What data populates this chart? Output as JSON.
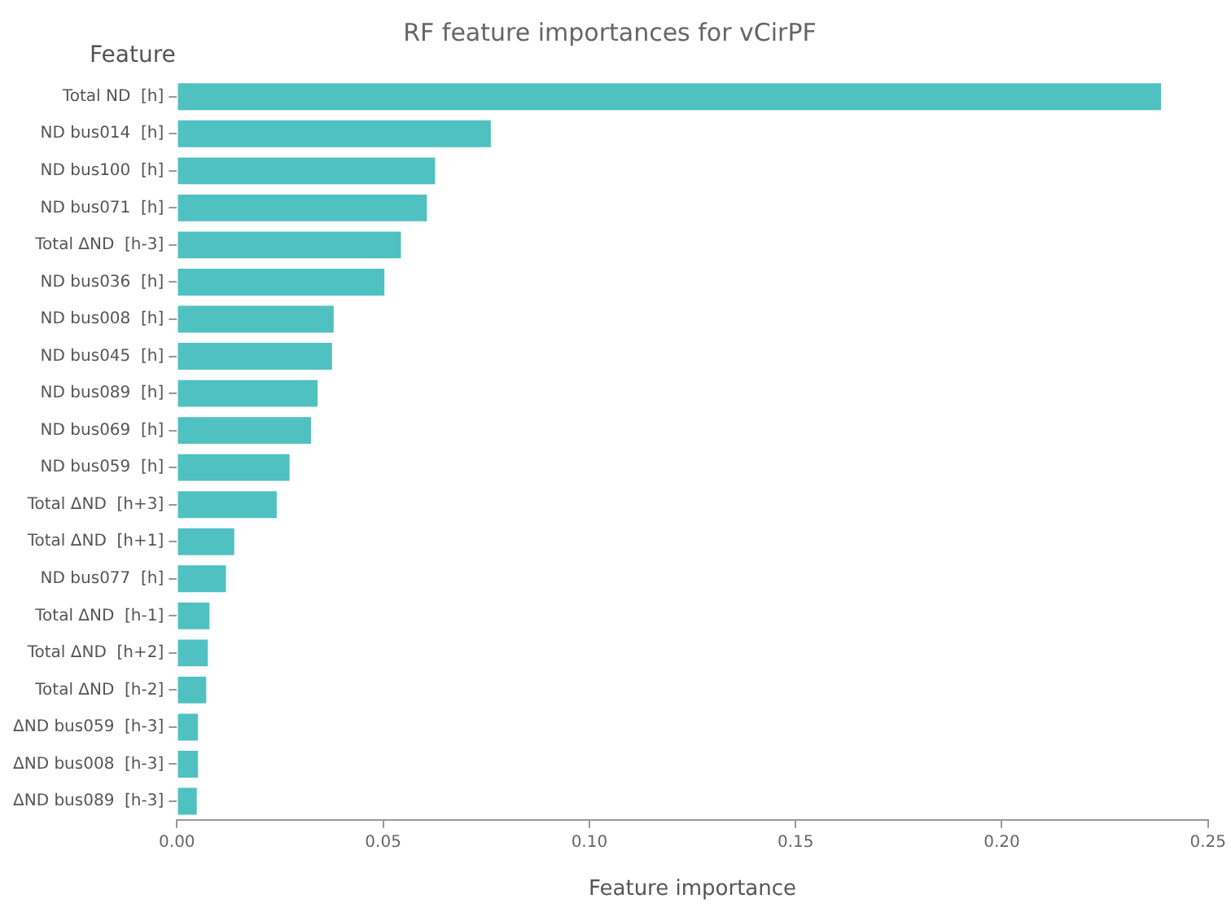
{
  "chart_data": {
    "type": "bar",
    "orientation": "horizontal",
    "title": "RF feature importances for vCirPF",
    "xlabel": "Feature importance",
    "ylabel": "Feature",
    "categories": [
      "Total ND  [h]",
      "ND bus014  [h]",
      "ND bus100  [h]",
      "ND bus071  [h]",
      "Total ΔND  [h-3]",
      "ND bus036  [h]",
      "ND bus008  [h]",
      "ND bus045  [h]",
      "ND bus089  [h]",
      "ND bus069  [h]",
      "ND bus059  [h]",
      "Total ΔND  [h+3]",
      "Total ΔND  [h+1]",
      "ND bus077  [h]",
      "Total ΔND  [h-1]",
      "Total ΔND  [h+2]",
      "Total ΔND  [h-2]",
      "ΔND bus059  [h-3]",
      "ΔND bus008  [h-3]",
      "ΔND bus089  [h-3]"
    ],
    "values": [
      0.239,
      0.0765,
      0.063,
      0.061,
      0.0547,
      0.0507,
      0.0384,
      0.038,
      0.0345,
      0.0329,
      0.0277,
      0.0246,
      0.0143,
      0.0123,
      0.0083,
      0.0079,
      0.0075,
      0.0055,
      0.0055,
      0.0052
    ],
    "color": "#50c1c1",
    "xlim": [
      0,
      0.25
    ],
    "xticks": [
      {
        "value": 0,
        "label": "0.00"
      },
      {
        "value": 0.05,
        "label": "0.05"
      },
      {
        "value": 0.1,
        "label": "0.10"
      },
      {
        "value": 0.15,
        "label": "0.15"
      },
      {
        "value": 0.2,
        "label": "0.20"
      },
      {
        "value": 0.25,
        "label": "0.25"
      }
    ],
    "grid": false,
    "legend": false
  }
}
